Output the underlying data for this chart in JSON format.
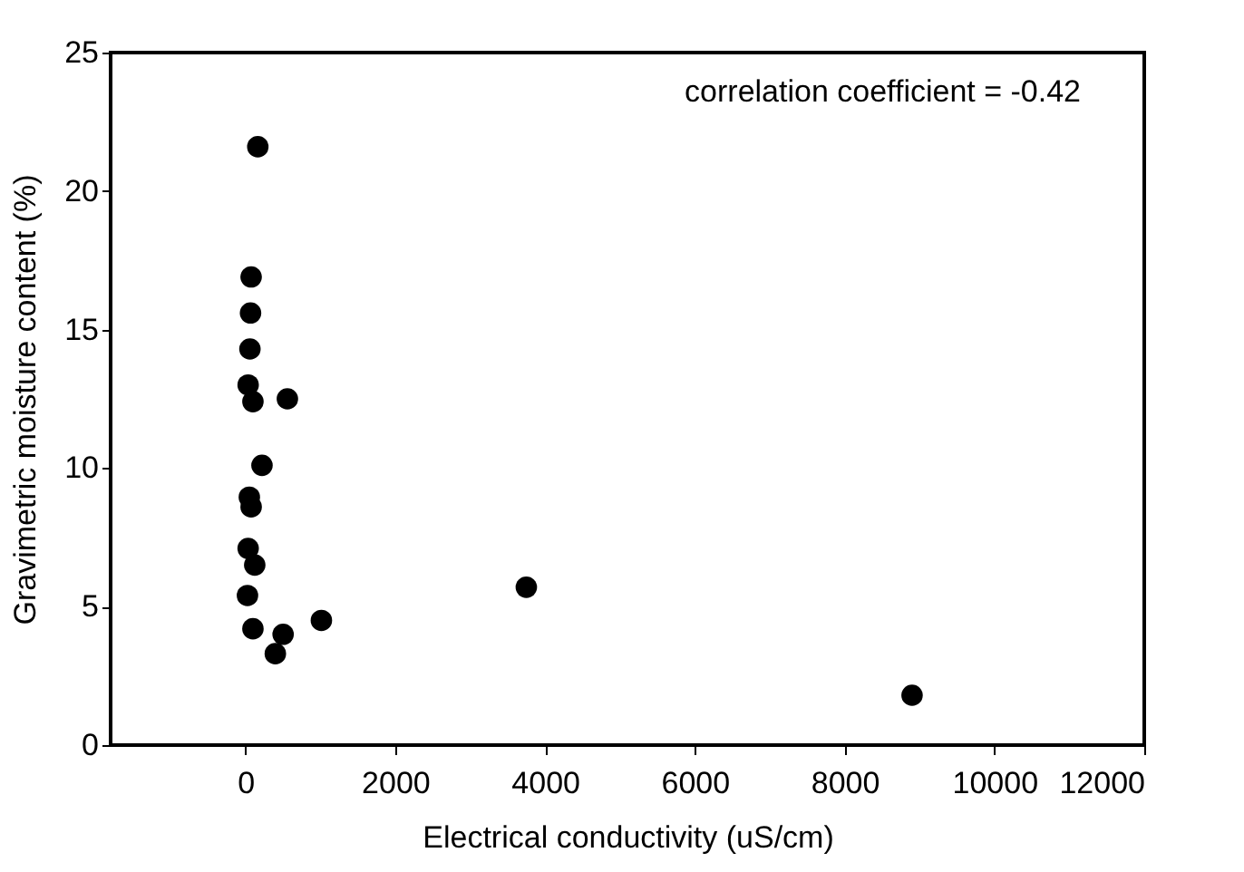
{
  "chart_data": {
    "type": "scatter",
    "xlabel": "Electrical conductivity (uS/cm)",
    "ylabel": "Gravimetric moisture content (%)",
    "annotations": [
      "correlation coefficient = -0.42"
    ],
    "series": [
      {
        "color": "#000000",
        "x": [
          165,
          76,
          68,
          60,
          36,
          100,
          560,
          221,
          52,
          76,
          36,
          124,
          27,
          100,
          503,
          399,
          1014,
          3750,
          8900
        ],
        "values": [
          21.6,
          16.9,
          15.6,
          14.3,
          13.0,
          12.4,
          12.5,
          10.1,
          8.95,
          8.6,
          7.1,
          6.5,
          5.4,
          4.2,
          4.0,
          3.3,
          4.5,
          5.7,
          1.8
        ]
      }
    ],
    "xlim": [
      -1800,
      12000
    ],
    "ylim": [
      0,
      25
    ],
    "xticks": [
      0,
      2000,
      4000,
      6000,
      8000,
      10000,
      12000
    ],
    "yticks": [
      0,
      5,
      10,
      15,
      20,
      25
    ],
    "grid": false,
    "marker": "circle"
  }
}
